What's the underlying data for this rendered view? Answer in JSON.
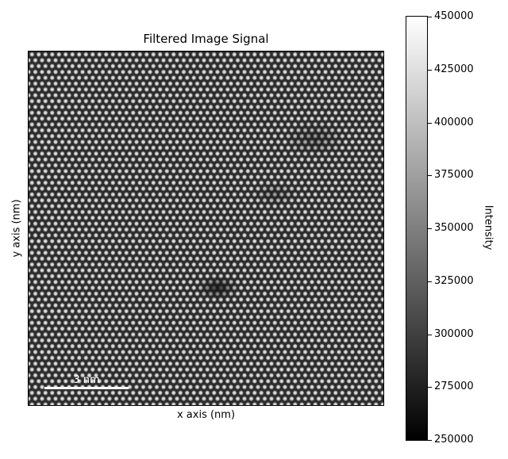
{
  "chart_data": {
    "type": "heatmap",
    "title": "Filtered Image Signal",
    "xlabel": "x axis (nm)",
    "ylabel": "y axis (nm)",
    "colorbar": {
      "label": "Intensity",
      "range": [
        250000,
        450000
      ],
      "ticks": [
        "250000",
        "275000",
        "300000",
        "325000",
        "350000",
        "375000",
        "400000",
        "425000",
        "450000"
      ],
      "colormap": "gray"
    },
    "scalebar": {
      "label": "3 nm"
    },
    "grid": false
  }
}
